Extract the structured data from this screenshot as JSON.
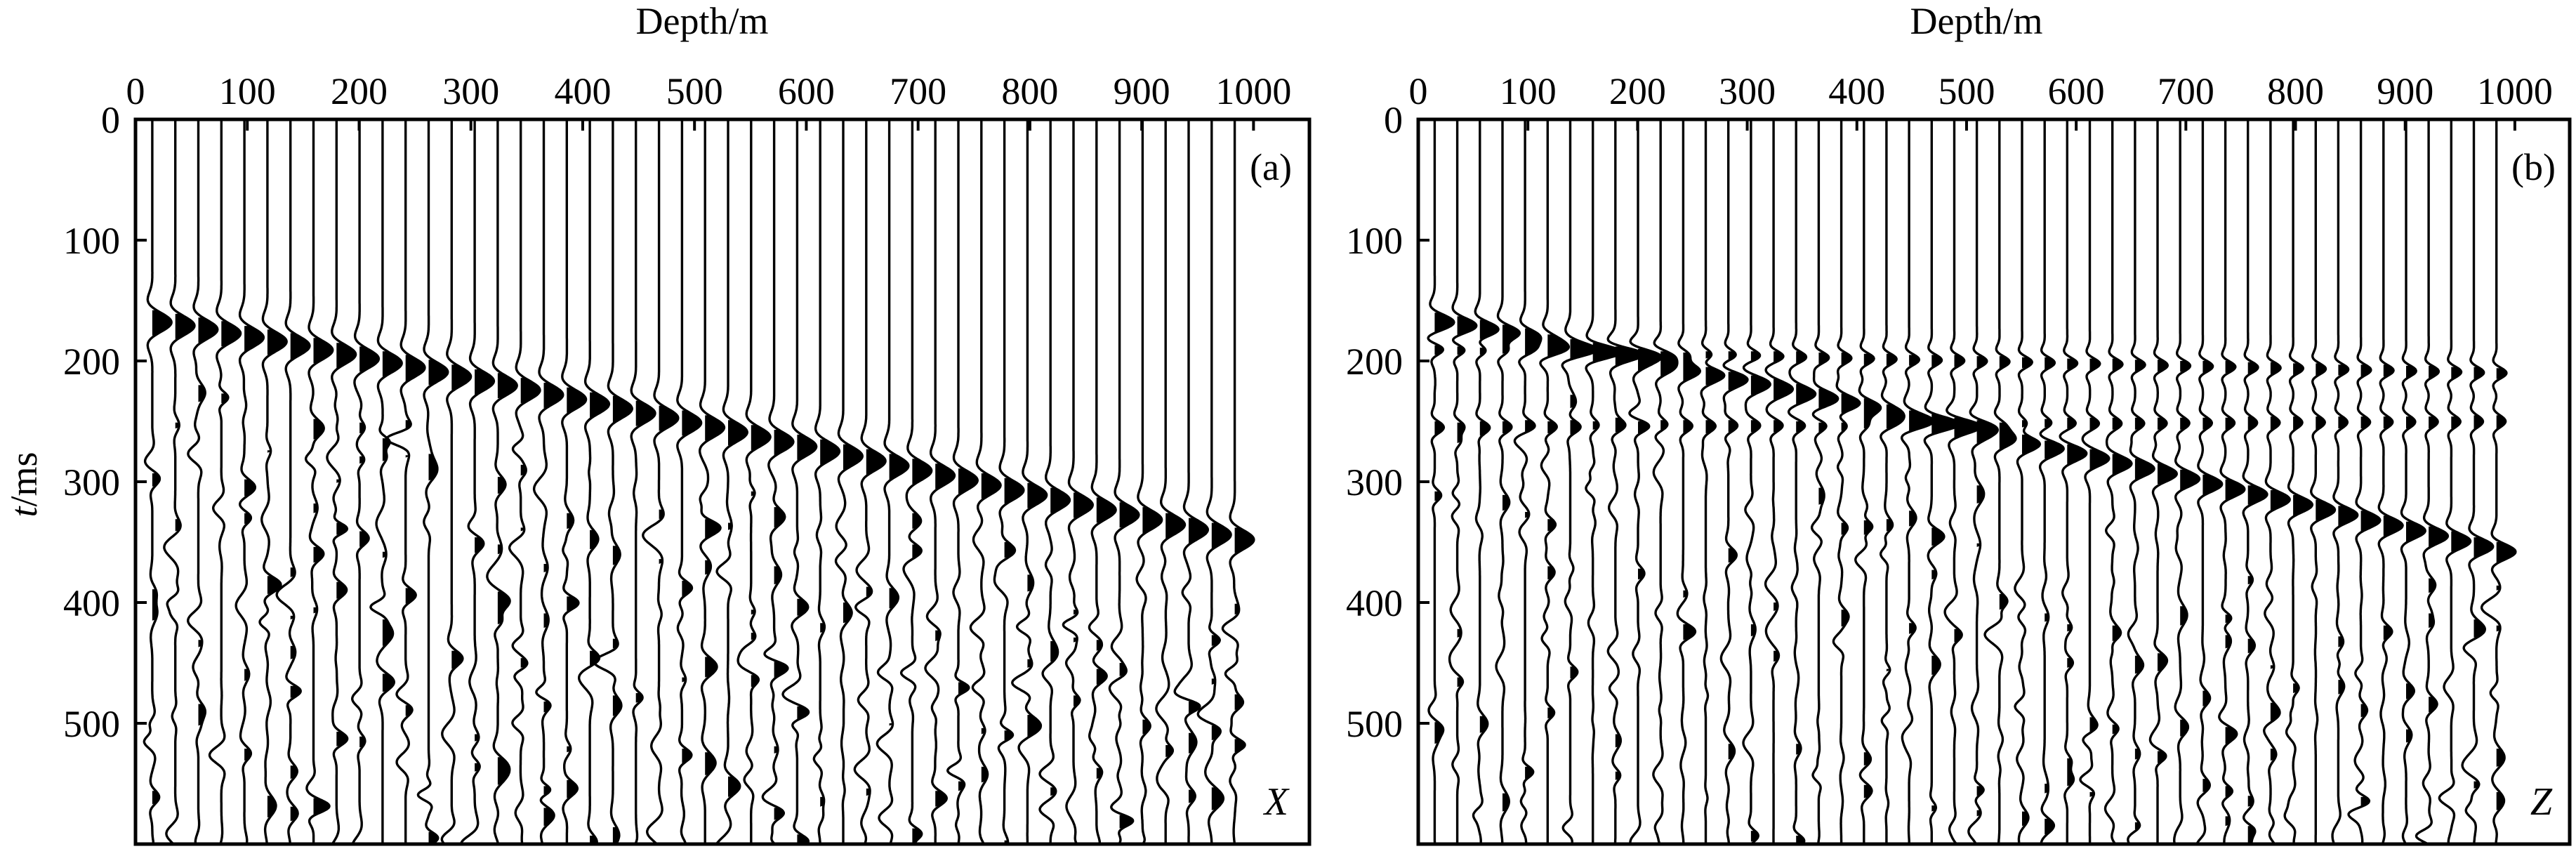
{
  "chart_data": [
    {
      "type": "seismic-wiggle",
      "panel_label": "(a)",
      "component_label": "X",
      "xlabel": "Depth/m",
      "ylabel_italic": "t",
      "ylabel_rest": "/ms",
      "xlim": [
        0,
        1050
      ],
      "ylim": [
        0,
        600
      ],
      "y_inverted": true,
      "xticks": [
        0,
        100,
        200,
        300,
        400,
        500,
        600,
        700,
        800,
        900,
        1000
      ],
      "xtick_labels": [
        "0",
        "100",
        "200",
        "300",
        "400",
        "500",
        "600",
        "700",
        "800",
        "900",
        "1000"
      ],
      "yticks": [
        0,
        100,
        200,
        300,
        400,
        500
      ],
      "ytick_labels": [
        "0",
        "100",
        "200",
        "300",
        "400",
        "500"
      ],
      "trace_count": 48,
      "trace_first_depth": 15,
      "trace_spacing": 20.6,
      "first_arrival_ms": [
        168,
        348
      ],
      "wavelet_period_ms": 40,
      "noise_level": 0.65,
      "grid": false,
      "legend": "none"
    },
    {
      "type": "seismic-wiggle",
      "panel_label": "(b)",
      "component_label": "Z",
      "xlabel": "Depth/m",
      "ylabel_italic": "",
      "ylabel_rest": "",
      "xlim": [
        0,
        1050
      ],
      "ylim": [
        0,
        600
      ],
      "y_inverted": true,
      "xticks": [
        0,
        100,
        200,
        300,
        400,
        500,
        600,
        700,
        800,
        900,
        1000
      ],
      "xtick_labels": [
        "0",
        "100",
        "200",
        "300",
        "400",
        "500",
        "600",
        "700",
        "800",
        "900",
        "1000"
      ],
      "yticks": [
        0,
        100,
        200,
        300,
        400,
        500
      ],
      "ytick_labels": [
        "0",
        "100",
        "200",
        "300",
        "400",
        "500"
      ],
      "trace_count": 48,
      "trace_first_depth": 15,
      "trace_spacing": 20.6,
      "first_arrival_ms": [
        168,
        358
      ],
      "wavelet_period_ms": 32,
      "noise_level": 0.45,
      "grid": false,
      "legend": "none"
    }
  ]
}
